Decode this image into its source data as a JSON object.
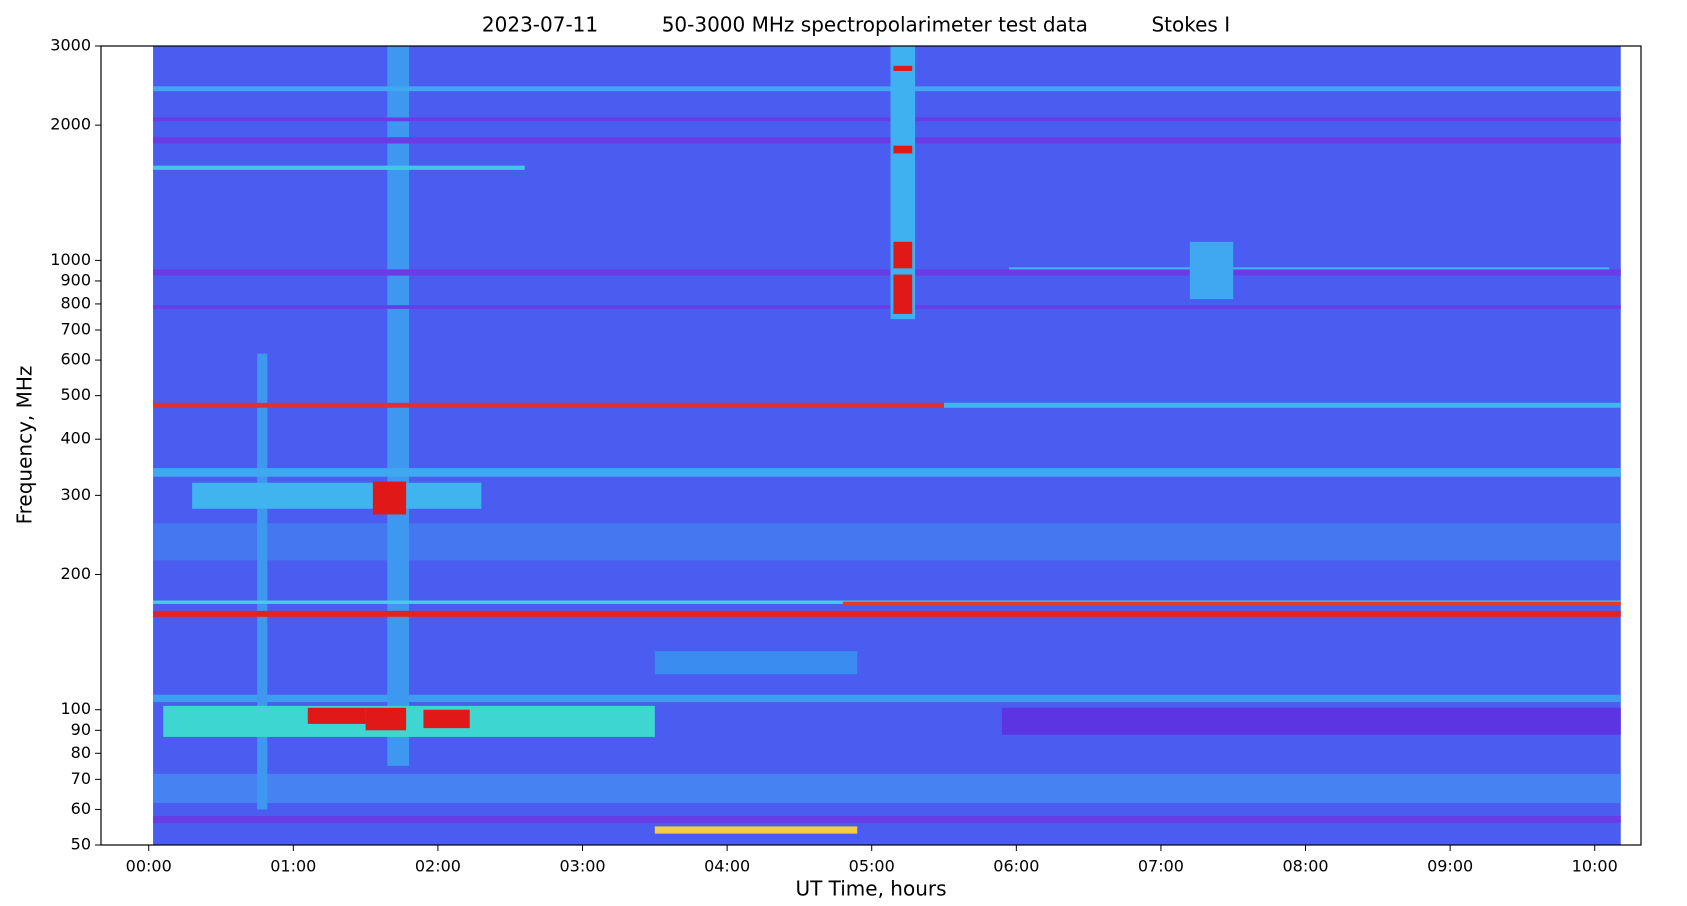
{
  "chart_data": {
    "type": "spectrogram",
    "title": "2023-07-11          50-3000 MHz spectropolarimeter test data          Stokes I",
    "x_label": "UT Time, hours",
    "y_label": "Frequency, MHz",
    "xlim": [
      -0.33,
      10.32
    ],
    "xticks": [
      {
        "value": 0,
        "label": "00:00"
      },
      {
        "value": 1,
        "label": "01:00"
      },
      {
        "value": 2,
        "label": "02:00"
      },
      {
        "value": 3,
        "label": "03:00"
      },
      {
        "value": 4,
        "label": "04:00"
      },
      {
        "value": 5,
        "label": "05:00"
      },
      {
        "value": 6,
        "label": "06:00"
      },
      {
        "value": 7,
        "label": "07:00"
      },
      {
        "value": 8,
        "label": "08:00"
      },
      {
        "value": 9,
        "label": "09:00"
      },
      {
        "value": 10,
        "label": "10:00"
      }
    ],
    "ylim": [
      50,
      3000
    ],
    "yscale": "log",
    "yticks": [
      50,
      60,
      70,
      80,
      90,
      100,
      200,
      300,
      400,
      500,
      600,
      700,
      800,
      900,
      1000,
      2000,
      3000
    ],
    "features": [
      {
        "x": [
          0.03,
          10.18
        ],
        "y": [
          50,
          3000
        ],
        "color": "#4b5df0"
      },
      {
        "x": [
          0.03,
          10.18
        ],
        "y": [
          56,
          58
        ],
        "color": "#6a3ce6"
      },
      {
        "x": [
          0.03,
          10.18
        ],
        "y": [
          62,
          72
        ],
        "color": "#4682f2"
      },
      {
        "x": [
          5.9,
          10.18
        ],
        "y": [
          88,
          101
        ],
        "color": "#5c34e2"
      },
      {
        "x": [
          0.03,
          10.18
        ],
        "y": [
          104,
          108
        ],
        "color": "#3f9cf0"
      },
      {
        "x": [
          0.03,
          10.18
        ],
        "y": [
          215,
          260
        ],
        "color": "#4477f0"
      },
      {
        "x": [
          0.75,
          0.82
        ],
        "y": [
          60,
          620
        ],
        "color": "#3f98f0"
      },
      {
        "x": [
          1.65,
          1.8
        ],
        "y": [
          75,
          3000
        ],
        "color": "#3f98f0"
      },
      {
        "x": [
          0.1,
          3.5
        ],
        "y": [
          87,
          102
        ],
        "color": "#3ed6d0"
      },
      {
        "x": [
          3.5,
          4.9
        ],
        "y": [
          120,
          135
        ],
        "color": "#3a8cf0"
      },
      {
        "x": [
          0.03,
          10.18
        ],
        "y": [
          925,
          955
        ],
        "color": "#6a3ce6"
      },
      {
        "x": [
          5.95,
          10.1
        ],
        "y": [
          955,
          965
        ],
        "color": "#3fb8f0"
      },
      {
        "x": [
          0.03,
          10.18
        ],
        "y": [
          780,
          795
        ],
        "color": "#6a3ce6"
      },
      {
        "x": [
          0.03,
          10.18
        ],
        "y": [
          1820,
          1880
        ],
        "color": "#6a3ce6"
      },
      {
        "x": [
          0.03,
          10.18
        ],
        "y": [
          2040,
          2080
        ],
        "color": "#6a3ce6"
      },
      {
        "x": [
          0.03,
          10.18
        ],
        "y": [
          2380,
          2440
        ],
        "color": "#3fa8f0"
      },
      {
        "x": [
          0.03,
          2.6
        ],
        "y": [
          1590,
          1625
        ],
        "color": "#40c8e6"
      },
      {
        "x": [
          0.03,
          10.18
        ],
        "y": [
          330,
          345
        ],
        "color": "#3fa8f0"
      },
      {
        "x": [
          0.03,
          10.18
        ],
        "y": [
          172,
          175
        ],
        "color": "#44d0e0"
      },
      {
        "x": [
          5.13,
          5.3
        ],
        "y": [
          740,
          3000
        ],
        "color": "#3fb0f0"
      },
      {
        "x": [
          7.2,
          7.5
        ],
        "y": [
          820,
          1100
        ],
        "color": "#3fa8f0"
      },
      {
        "x": [
          0.3,
          2.3
        ],
        "y": [
          280,
          320
        ],
        "color": "#3fb4ee"
      },
      {
        "x": [
          0.03,
          5.5
        ],
        "y": [
          470,
          482
        ],
        "color": "#e03030"
      },
      {
        "x": [
          5.5,
          10.18
        ],
        "y": [
          470,
          482
        ],
        "color": "#3fb8f0"
      },
      {
        "x": [
          0.03,
          10.18
        ],
        "y": [
          161,
          166
        ],
        "color": "#e82020"
      },
      {
        "x": [
          4.8,
          10.18
        ],
        "y": [
          171,
          174
        ],
        "color": "#e83a2a"
      },
      {
        "x": [
          1.55,
          1.78
        ],
        "y": [
          272,
          322
        ],
        "color": "#e01818"
      },
      {
        "x": [
          1.1,
          1.5
        ],
        "y": [
          93,
          101
        ],
        "color": "#e01818"
      },
      {
        "x": [
          1.5,
          1.78
        ],
        "y": [
          90,
          101
        ],
        "color": "#e01818"
      },
      {
        "x": [
          1.9,
          2.22
        ],
        "y": [
          91,
          100
        ],
        "color": "#e01818"
      },
      {
        "x": [
          5.15,
          5.28
        ],
        "y": [
          2640,
          2710
        ],
        "color": "#e01818"
      },
      {
        "x": [
          5.15,
          5.28
        ],
        "y": [
          1730,
          1800
        ],
        "color": "#e01818"
      },
      {
        "x": [
          5.15,
          5.28
        ],
        "y": [
          960,
          1100
        ],
        "color": "#e01818"
      },
      {
        "x": [
          5.15,
          5.28
        ],
        "y": [
          760,
          930
        ],
        "color": "#e01818"
      },
      {
        "x": [
          3.5,
          4.9
        ],
        "y": [
          53,
          55
        ],
        "color": "#f0d040"
      }
    ]
  }
}
